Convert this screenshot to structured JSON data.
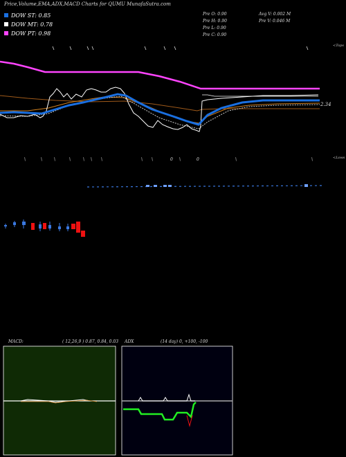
{
  "header": {
    "title": "Price,Volume,EMA,ADX,MACD Charts for QUMU MunafaSutra.com"
  },
  "legend": [
    {
      "label": "DOW ST: 0.85",
      "color": "#1a6fe0"
    },
    {
      "label": "DOW MT: 0.78",
      "color": "#ffffff"
    },
    {
      "label": "DOW PT: 0.98",
      "color": "#ff44ff"
    }
  ],
  "info_columns": [
    [
      "Pre  O: 0.90",
      "Pre  H: 0.90",
      "Pre  L: 0.90",
      "Pre  C: 0.90"
    ],
    [
      "Avg V: 0.002  M",
      "Pre   V: 0.046  M"
    ]
  ],
  "edge_labels": {
    "top": "<Tops",
    "bottom": "<Lows"
  },
  "price_tag": "2.34",
  "colors": {
    "pt_line": "#ff44ff",
    "st_line": "#1a6fe0",
    "price_line": "#ffffff",
    "ema_brown": "#a05a1a",
    "ema_orange": "#d08020",
    "ema_dotted": "#cccccc",
    "volume_dash": "#3a78e0",
    "candle_up": "#3a78e0",
    "candle_down": "#ee1111",
    "macd_bg": "#0f2a05",
    "adx_bg": "#000010",
    "adx_green": "#22ee22"
  },
  "macd": {
    "label": "MACD:",
    "params": "( 12,26,9 ) 0.87,  0.84,  0.03"
  },
  "adx": {
    "label": "ADX",
    "params": "(14  day) 0,  +100,  -100"
  },
  "chart_data": {
    "type": "line",
    "ylabel_tag": "2.34",
    "series": [
      {
        "name": "DOW PT",
        "values": [
          2.7,
          2.65,
          2.58,
          2.55,
          2.55,
          2.55,
          2.55,
          2.55,
          2.55,
          2.5,
          2.44,
          2.4,
          2.4,
          2.4,
          2.4,
          2.4,
          2.4,
          2.4,
          2.4
        ]
      },
      {
        "name": "DOW ST",
        "values": [
          2.22,
          2.2,
          2.2,
          2.24,
          2.3,
          2.36,
          2.4,
          2.4,
          2.32,
          2.24,
          2.16,
          2.12,
          2.2,
          2.26,
          2.3,
          2.3,
          2.3,
          2.3,
          2.3
        ]
      }
    ]
  }
}
